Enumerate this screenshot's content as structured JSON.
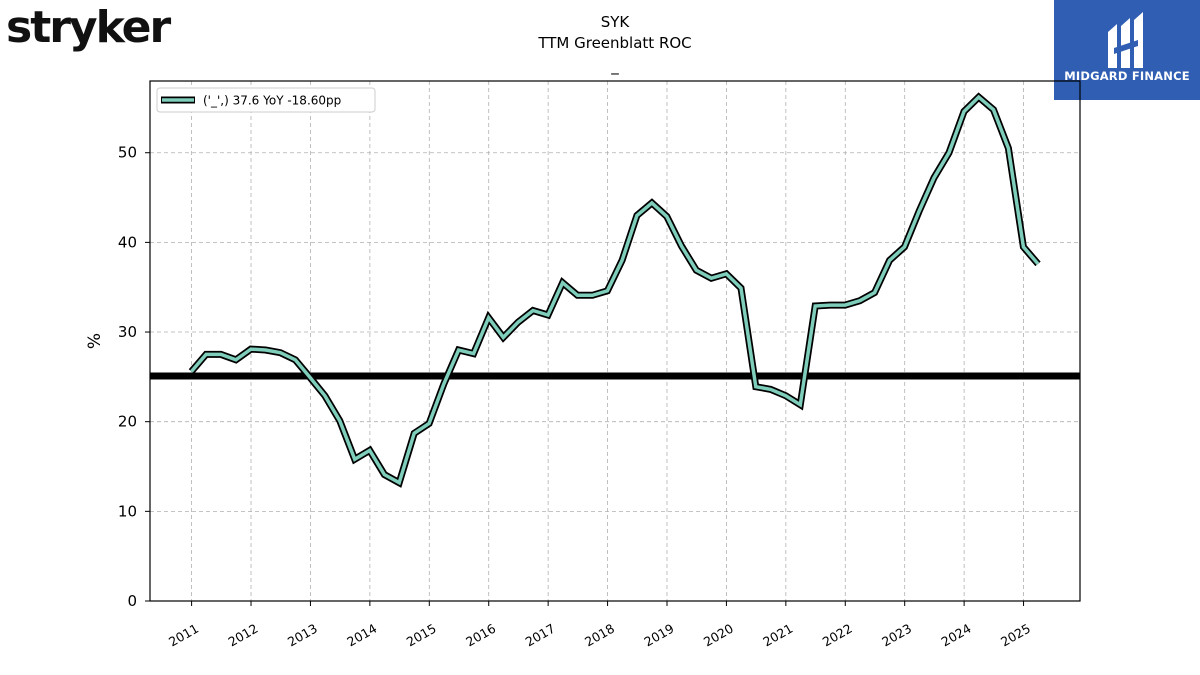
{
  "brand_left": "stryker",
  "brand_right": "MIDGARD FINANCE",
  "chart_data": {
    "type": "line",
    "title": "SYK",
    "subtitle": "TTM Greenblatt ROC",
    "subtitle2": "_",
    "ylabel": "%",
    "xlabel": "",
    "ylim": [
      0,
      58
    ],
    "yticks": [
      0,
      10,
      20,
      30,
      40,
      50
    ],
    "xticks": [
      "2011",
      "2012",
      "2013",
      "2014",
      "2015",
      "2016",
      "2017",
      "2018",
      "2019",
      "2020",
      "2021",
      "2022",
      "2023",
      "2024",
      "2025"
    ],
    "grid": true,
    "legend_position": "top-left",
    "reference_line": 25.1,
    "series": [
      {
        "name": "('_',) 37.6 YoY -18.60pp",
        "color": "#7fcdbb",
        "outline": "#000000",
        "points": [
          [
            "2010-12-31",
            25.6
          ],
          [
            "2011-03-31",
            27.5
          ],
          [
            "2011-06-30",
            27.5
          ],
          [
            "2011-09-30",
            26.9
          ],
          [
            "2011-12-31",
            28.1
          ],
          [
            "2012-03-31",
            28.0
          ],
          [
            "2012-06-30",
            27.7
          ],
          [
            "2012-09-30",
            26.9
          ],
          [
            "2012-12-31",
            24.9
          ],
          [
            "2013-03-31",
            22.9
          ],
          [
            "2013-06-30",
            20.1
          ],
          [
            "2013-09-30",
            15.8
          ],
          [
            "2013-12-31",
            16.8
          ],
          [
            "2014-03-31",
            14.1
          ],
          [
            "2014-06-30",
            13.2
          ],
          [
            "2014-09-30",
            18.7
          ],
          [
            "2014-12-31",
            19.8
          ],
          [
            "2015-03-31",
            24.2
          ],
          [
            "2015-06-30",
            28.0
          ],
          [
            "2015-09-30",
            27.6
          ],
          [
            "2015-12-31",
            31.6
          ],
          [
            "2016-03-31",
            29.4
          ],
          [
            "2016-06-30",
            31.1
          ],
          [
            "2016-09-30",
            32.4
          ],
          [
            "2016-12-31",
            31.9
          ],
          [
            "2017-03-31",
            35.5
          ],
          [
            "2017-06-30",
            34.1
          ],
          [
            "2017-09-30",
            34.1
          ],
          [
            "2017-12-31",
            34.6
          ],
          [
            "2018-03-31",
            38.0
          ],
          [
            "2018-06-30",
            43.0
          ],
          [
            "2018-09-30",
            44.4
          ],
          [
            "2018-12-31",
            42.9
          ],
          [
            "2019-03-31",
            39.6
          ],
          [
            "2019-06-30",
            36.9
          ],
          [
            "2019-09-30",
            36.0
          ],
          [
            "2019-12-31",
            36.5
          ],
          [
            "2020-03-31",
            34.9
          ],
          [
            "2020-06-30",
            23.9
          ],
          [
            "2020-09-30",
            23.6
          ],
          [
            "2020-12-31",
            22.9
          ],
          [
            "2021-03-31",
            21.9
          ],
          [
            "2021-06-30",
            32.9
          ],
          [
            "2021-09-30",
            33.0
          ],
          [
            "2021-12-31",
            33.0
          ],
          [
            "2022-03-31",
            33.5
          ],
          [
            "2022-06-30",
            34.4
          ],
          [
            "2022-09-30",
            38.0
          ],
          [
            "2022-12-31",
            39.5
          ],
          [
            "2023-03-31",
            43.5
          ],
          [
            "2023-06-30",
            47.2
          ],
          [
            "2023-09-30",
            50.0
          ],
          [
            "2023-12-31",
            54.6
          ],
          [
            "2024-03-31",
            56.2
          ],
          [
            "2024-06-30",
            54.8
          ],
          [
            "2024-09-30",
            50.5
          ],
          [
            "2024-12-31",
            39.5
          ],
          [
            "2025-03-31",
            37.6
          ]
        ]
      }
    ]
  }
}
